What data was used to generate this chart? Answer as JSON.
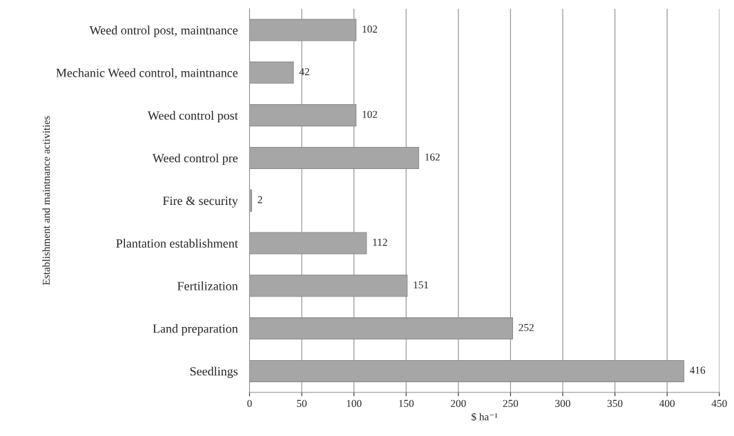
{
  "chart_data": {
    "type": "bar",
    "orientation": "horizontal",
    "categories": [
      "Weed ontrol post, maintnance",
      "Mechanic Weed control, maintnance",
      "Weed control post",
      "Weed control pre",
      "Fire & security",
      "Plantation establishment",
      "Fertilization",
      "Land preparation",
      "Seedlings"
    ],
    "values": [
      102,
      42,
      102,
      162,
      2,
      112,
      151,
      252,
      416
    ],
    "color": "#a6a6a6",
    "xlim": [
      0,
      450
    ],
    "xticks": [
      0,
      50,
      100,
      150,
      200,
      250,
      300,
      350,
      400,
      450
    ],
    "xlabel": "$ ha⁻¹",
    "ylabel": "Establishment and maintnance activities",
    "grid": "x",
    "data_labels": true
  }
}
